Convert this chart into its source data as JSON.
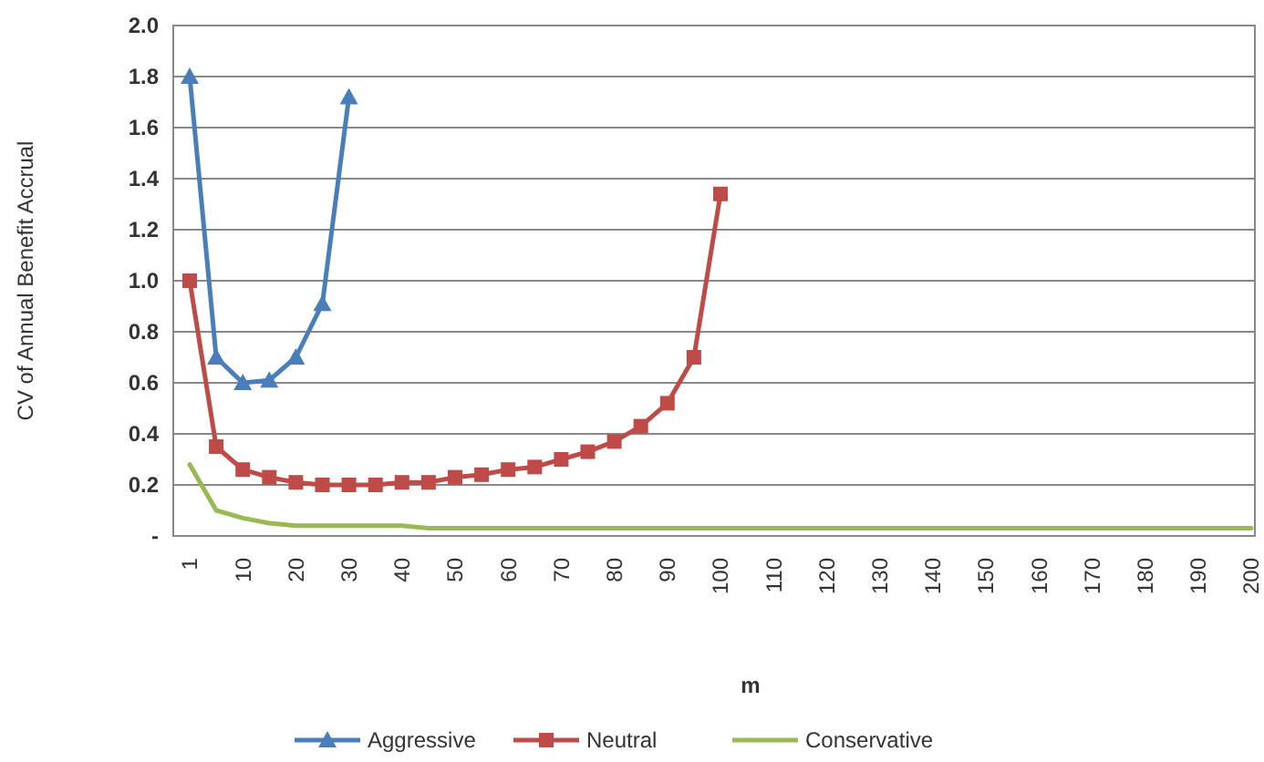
{
  "chart_data": {
    "type": "line",
    "xlabel": "m",
    "ylabel": "CV of Annual Benefit Accrual",
    "categories": [
      "1",
      null,
      "10",
      null,
      "20",
      null,
      "30",
      null,
      "40",
      null,
      "50",
      null,
      "60",
      null,
      "70",
      null,
      "80",
      null,
      "90",
      null,
      "100",
      null,
      "110",
      null,
      "120",
      null,
      "130",
      null,
      "140",
      null,
      "150",
      null,
      "160",
      null,
      "170",
      null,
      "180",
      null,
      "190",
      null,
      "200"
    ],
    "series": [
      {
        "name": "Aggressive",
        "color": "#4a7ebb",
        "marker": "triangle",
        "values": [
          1.8,
          0.7,
          0.6,
          0.61,
          0.7,
          0.91,
          1.72,
          null,
          null,
          null,
          null,
          null,
          null,
          null,
          null,
          null,
          null,
          null,
          null,
          null,
          null,
          null,
          null,
          null,
          null,
          null,
          null,
          null,
          null,
          null,
          null,
          null,
          null,
          null,
          null,
          null,
          null,
          null,
          null,
          null,
          null
        ]
      },
      {
        "name": "Neutral",
        "color": "#be4b48",
        "marker": "square",
        "values": [
          1.0,
          0.35,
          0.26,
          0.23,
          0.21,
          0.2,
          0.2,
          0.2,
          0.21,
          0.21,
          0.23,
          0.24,
          0.26,
          0.27,
          0.3,
          0.33,
          0.37,
          0.43,
          0.52,
          0.7,
          1.34,
          null,
          null,
          null,
          null,
          null,
          null,
          null,
          null,
          null,
          null,
          null,
          null,
          null,
          null,
          null,
          null,
          null,
          null,
          null,
          null
        ]
      },
      {
        "name": "Conservative",
        "color": "#98b954",
        "marker": "none",
        "values": [
          0.28,
          0.1,
          0.07,
          0.05,
          0.04,
          0.04,
          0.04,
          0.04,
          0.04,
          0.03,
          0.03,
          0.03,
          0.03,
          0.03,
          0.03,
          0.03,
          0.03,
          0.03,
          0.03,
          0.03,
          0.03,
          0.03,
          0.03,
          0.03,
          0.03,
          0.03,
          0.03,
          0.03,
          0.03,
          0.03,
          0.03,
          0.03,
          0.03,
          0.03,
          0.03,
          0.03,
          0.03,
          0.03,
          0.03,
          0.03,
          0.03
        ]
      }
    ],
    "ylim": [
      0,
      2.0
    ],
    "yticks": [
      {
        "value": 0,
        "label": "-"
      },
      {
        "value": 0.2,
        "label": "0.2"
      },
      {
        "value": 0.4,
        "label": "0.4"
      },
      {
        "value": 0.6,
        "label": "0.6"
      },
      {
        "value": 0.8,
        "label": "0.8"
      },
      {
        "value": 1.0,
        "label": "1.0"
      },
      {
        "value": 1.2,
        "label": "1.2"
      },
      {
        "value": 1.4,
        "label": "1.4"
      },
      {
        "value": 1.6,
        "label": "1.6"
      },
      {
        "value": 1.8,
        "label": "1.8"
      },
      {
        "value": 2.0,
        "label": "2.0"
      }
    ],
    "grid": "y",
    "legend": "bottom",
    "line_style": "solid"
  }
}
